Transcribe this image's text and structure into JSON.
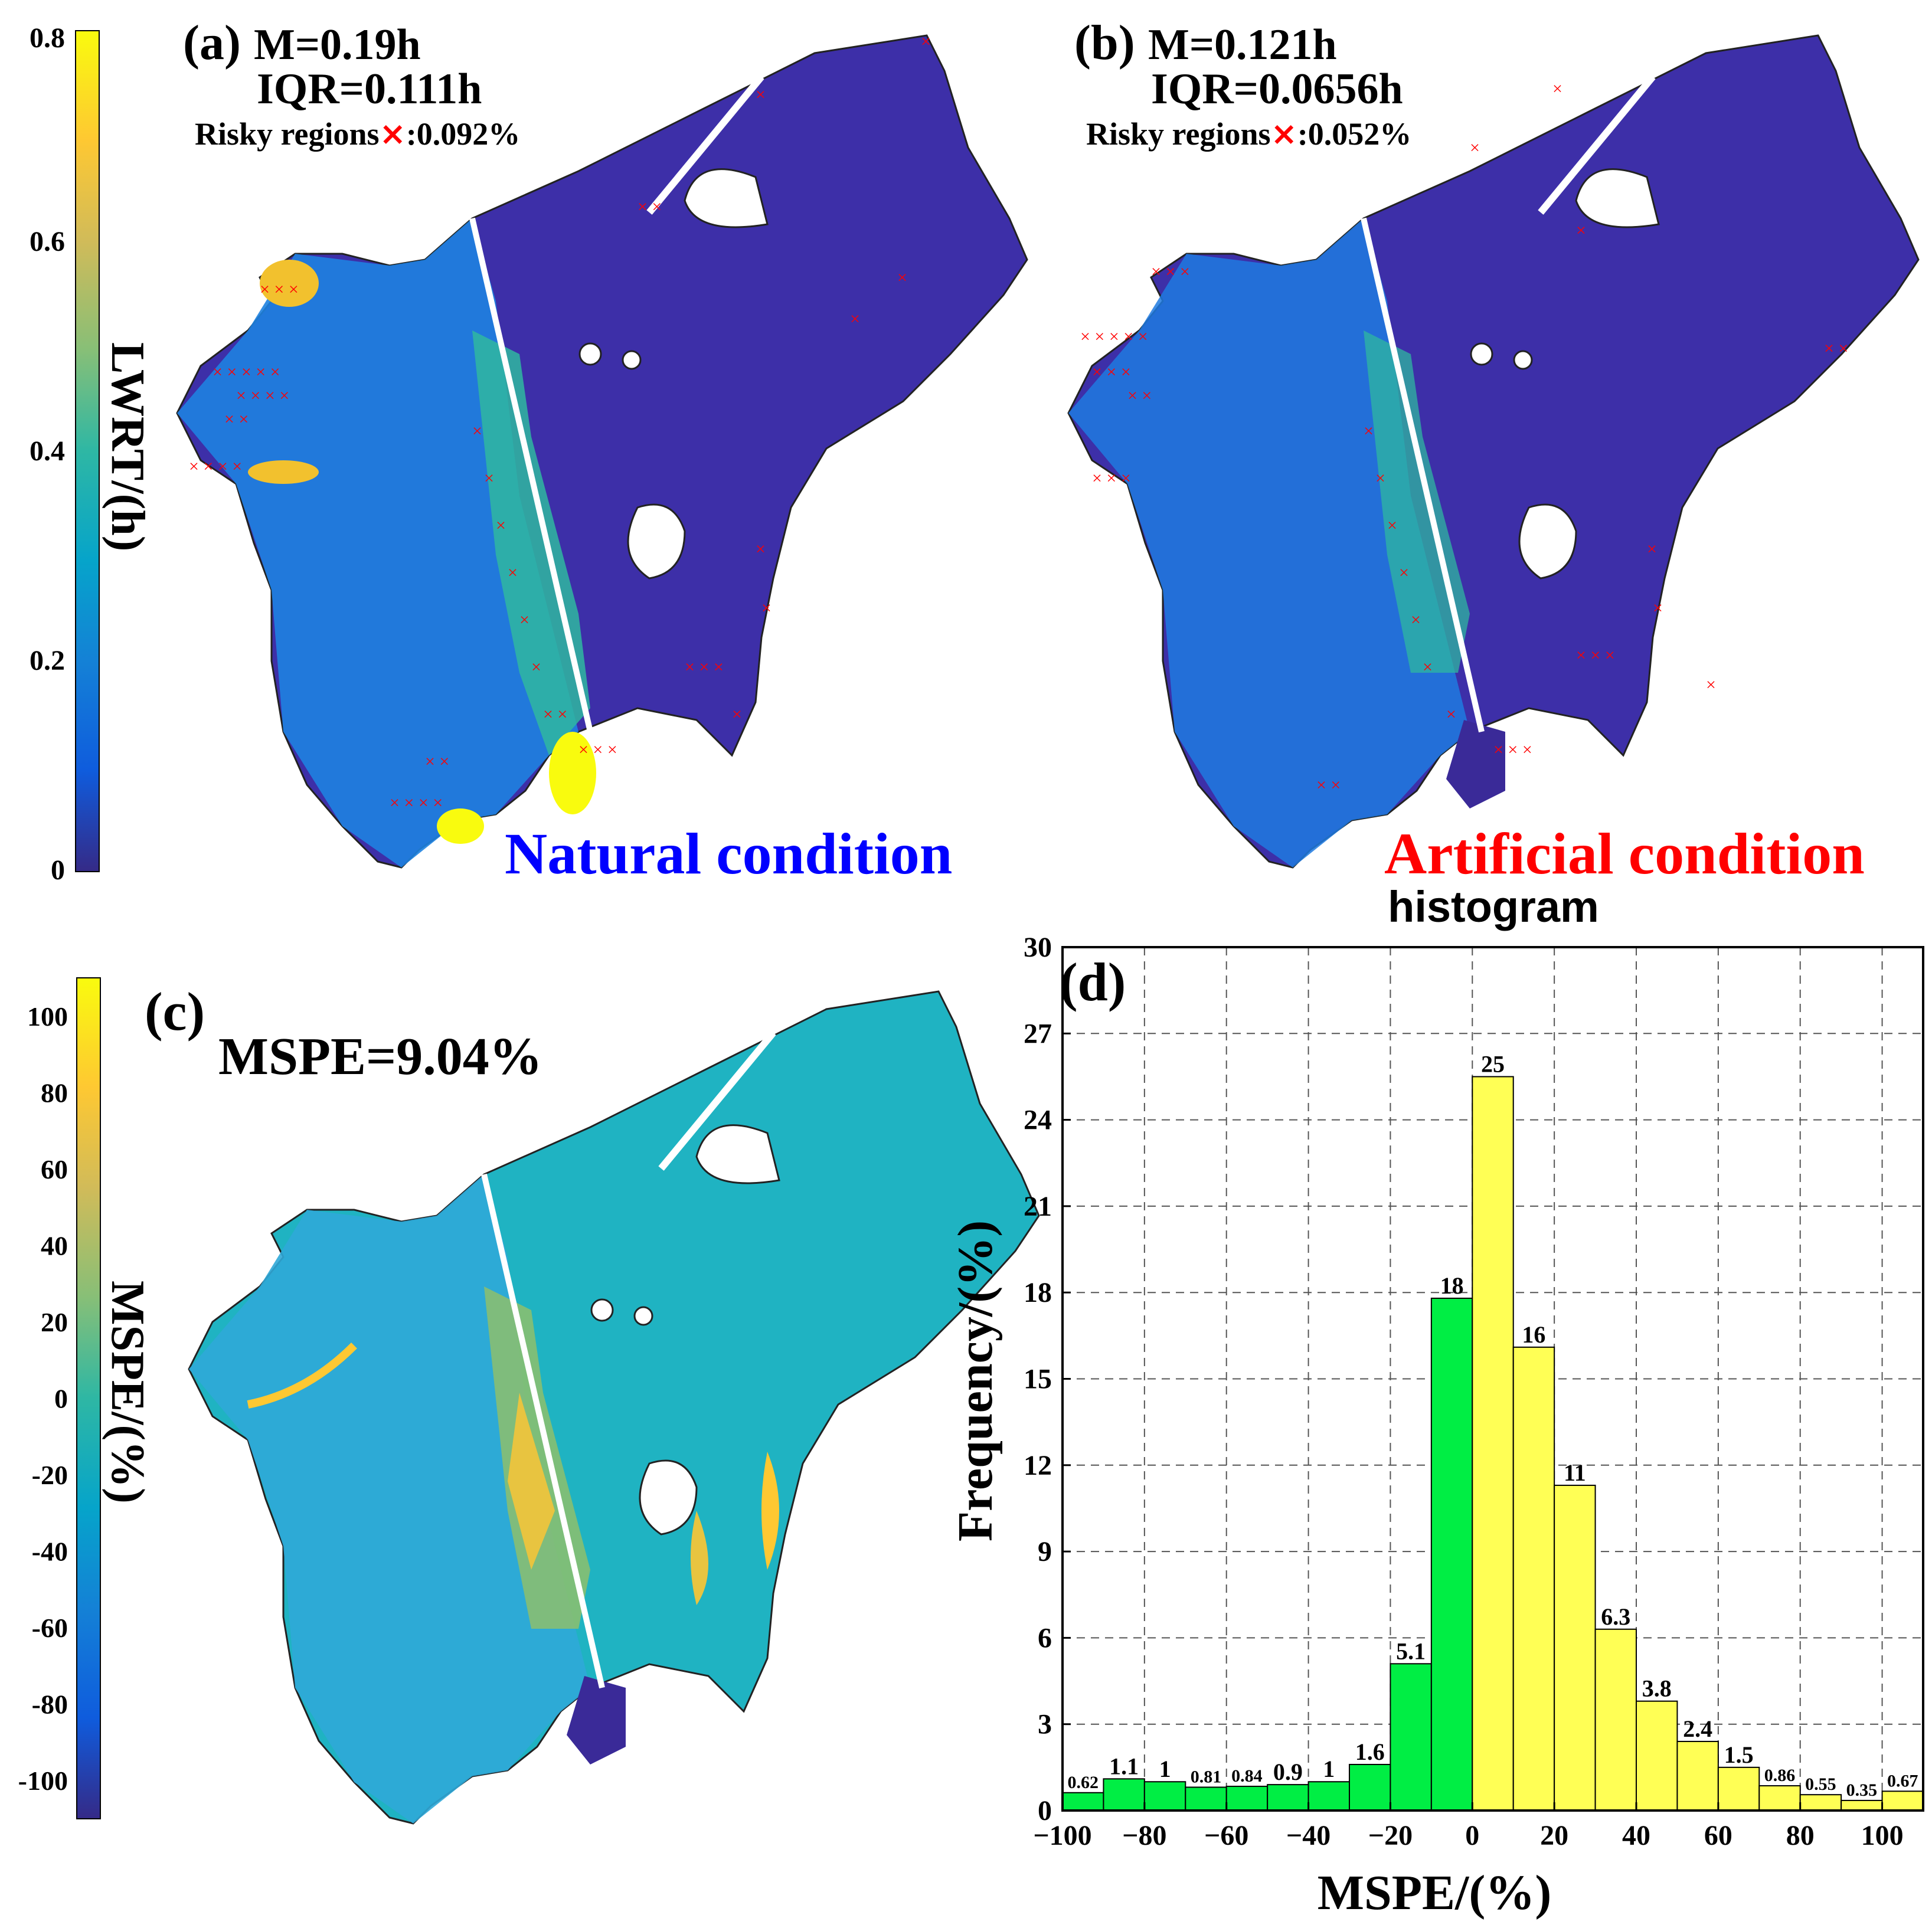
{
  "colors": {
    "parula": [
      "#352a87",
      "#0f5cdd",
      "#1481d6",
      "#06a4ca",
      "#2eb7a4",
      "#87bf77",
      "#d1bb59",
      "#fec832",
      "#f9fb0e"
    ],
    "natural_label": "#0000ff",
    "artificial_label": "#ff0000",
    "risk_marker": "#ff0000",
    "hist_negative": "#00ee44",
    "hist_positive": "#ffff55"
  },
  "panel_a": {
    "tag": "(a)",
    "median": "M=0.19h",
    "iqr": "IQR=0.111h",
    "risk_prefix": "Risky regions",
    "risk_mark": "×",
    "risk_value": ":0.092%",
    "condition": "Natural condition"
  },
  "panel_b": {
    "tag": "(b)",
    "median": "M=0.121h",
    "iqr": "IQR=0.0656h",
    "risk_prefix": "Risky regions",
    "risk_mark": "×",
    "risk_value": ":0.052%",
    "condition": "Artificial condition"
  },
  "colorbar_lwrt": {
    "label": "LWRT/(h)",
    "ticks": [
      "0.8",
      "0.6",
      "0.4",
      "0.2",
      "0"
    ],
    "range": [
      0,
      0.8
    ]
  },
  "panel_c": {
    "tag": "(c)",
    "metric": "MSPE=9.04%"
  },
  "colorbar_mspe": {
    "label": "MSPE/(%)",
    "ticks": [
      "100",
      "80",
      "60",
      "40",
      "20",
      "0",
      "-20",
      "-40",
      "-60",
      "-80",
      "-100"
    ],
    "range": [
      -110,
      110
    ]
  },
  "chart_data": {
    "type": "bar",
    "title": "histogram",
    "panel_tag": "(d)",
    "xlabel": "MSPE/(%)",
    "ylabel": "Frequency/(%)",
    "xlim": [
      -100,
      110
    ],
    "ylim": [
      0,
      30
    ],
    "xticks": [
      -100,
      -80,
      -60,
      -40,
      -20,
      0,
      20,
      40,
      60,
      80,
      100
    ],
    "yticks": [
      0,
      3,
      6,
      9,
      12,
      15,
      18,
      21,
      24,
      27,
      30
    ],
    "grid": true,
    "bin_width": 10,
    "bins": [
      {
        "start": -100,
        "value": 0.62,
        "label": "0.62"
      },
      {
        "start": -90,
        "value": 1.1,
        "label": "1.1"
      },
      {
        "start": -80,
        "value": 1.0,
        "label": "1"
      },
      {
        "start": -70,
        "value": 0.81,
        "label": "0.81"
      },
      {
        "start": -60,
        "value": 0.84,
        "label": "0.84"
      },
      {
        "start": -50,
        "value": 0.9,
        "label": "0.9"
      },
      {
        "start": -40,
        "value": 1.0,
        "label": "1"
      },
      {
        "start": -30,
        "value": 1.6,
        "label": "1.6"
      },
      {
        "start": -20,
        "value": 5.1,
        "label": "5.1"
      },
      {
        "start": -10,
        "value": 17.8,
        "label": "18"
      },
      {
        "start": 0,
        "value": 25.5,
        "label": "25"
      },
      {
        "start": 10,
        "value": 16.1,
        "label": "16"
      },
      {
        "start": 20,
        "value": 11.3,
        "label": "11"
      },
      {
        "start": 30,
        "value": 6.3,
        "label": "6.3"
      },
      {
        "start": 40,
        "value": 3.8,
        "label": "3.8"
      },
      {
        "start": 50,
        "value": 2.4,
        "label": "2.4"
      },
      {
        "start": 60,
        "value": 1.5,
        "label": "1.5"
      },
      {
        "start": 70,
        "value": 0.86,
        "label": "0.86"
      },
      {
        "start": 80,
        "value": 0.55,
        "label": "0.55"
      },
      {
        "start": 90,
        "value": 0.35,
        "label": "0.35"
      },
      {
        "start": 100,
        "value": 0.67,
        "label": "0.67"
      }
    ]
  }
}
